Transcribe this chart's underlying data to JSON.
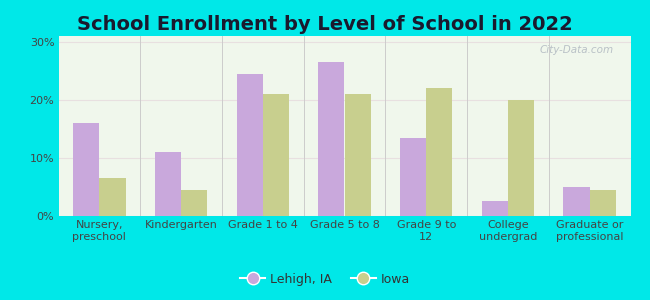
{
  "title": "School Enrollment by Level of School in 2022",
  "categories": [
    "Nursery,\npreschool",
    "Kindergarten",
    "Grade 1 to 4",
    "Grade 5 to 8",
    "Grade 9 to\n12",
    "College\nundergrad",
    "Graduate or\nprofessional"
  ],
  "lehigh_values": [
    16,
    11,
    24.5,
    26.5,
    13.5,
    2.5,
    5
  ],
  "iowa_values": [
    6.5,
    4.5,
    21,
    21,
    22,
    20,
    4.5
  ],
  "lehigh_color": "#c9a8dc",
  "iowa_color": "#c8cf8e",
  "background_outer": "#00e8e8",
  "background_inner_top": "#e8f5e0",
  "background_inner_bottom": "#ffffff",
  "yticks": [
    0,
    10,
    20,
    30
  ],
  "ytick_labels": [
    "0%",
    "10%",
    "20%",
    "30%"
  ],
  "ylim": [
    0,
    31
  ],
  "legend_lehigh": "Lehigh, IA",
  "legend_iowa": "Iowa",
  "watermark": "City-Data.com",
  "title_fontsize": 14,
  "axis_label_fontsize": 8,
  "legend_fontsize": 9,
  "bar_width": 0.32
}
